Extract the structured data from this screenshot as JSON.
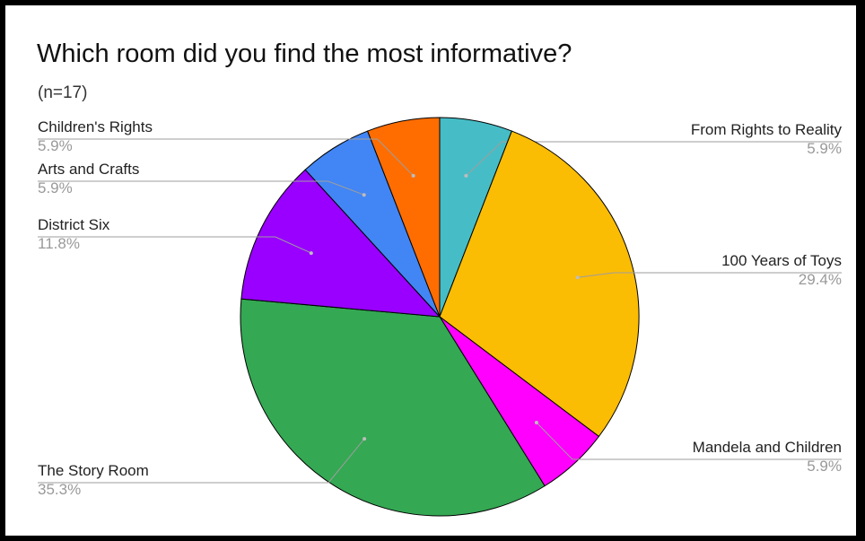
{
  "chart_data": {
    "type": "pie",
    "title": "Which room did you find the most informative?",
    "subtitle": "(n=17)",
    "slices": [
      {
        "label": "From Rights to Reality",
        "value": 5.9,
        "pct_label": "5.9%",
        "color": "#46bdc6"
      },
      {
        "label": "100 Years of Toys",
        "value": 29.4,
        "pct_label": "29.4%",
        "color": "#fbbc04"
      },
      {
        "label": "Mandela and Children",
        "value": 5.9,
        "pct_label": "5.9%",
        "color": "#ff00ff"
      },
      {
        "label": "The Story Room",
        "value": 35.3,
        "pct_label": "35.3%",
        "color": "#34a853"
      },
      {
        "label": "District Six",
        "value": 11.8,
        "pct_label": "11.8%",
        "color": "#9900ff"
      },
      {
        "label": "Arts and Crafts",
        "value": 5.9,
        "pct_label": "5.9%",
        "color": "#4285f4"
      },
      {
        "label": "Children's Rights",
        "value": 5.9,
        "pct_label": "5.9%",
        "color": "#ff6d01"
      }
    ],
    "start_angle": "top",
    "direction": "clockwise",
    "label_style": "outside with leader lines"
  }
}
